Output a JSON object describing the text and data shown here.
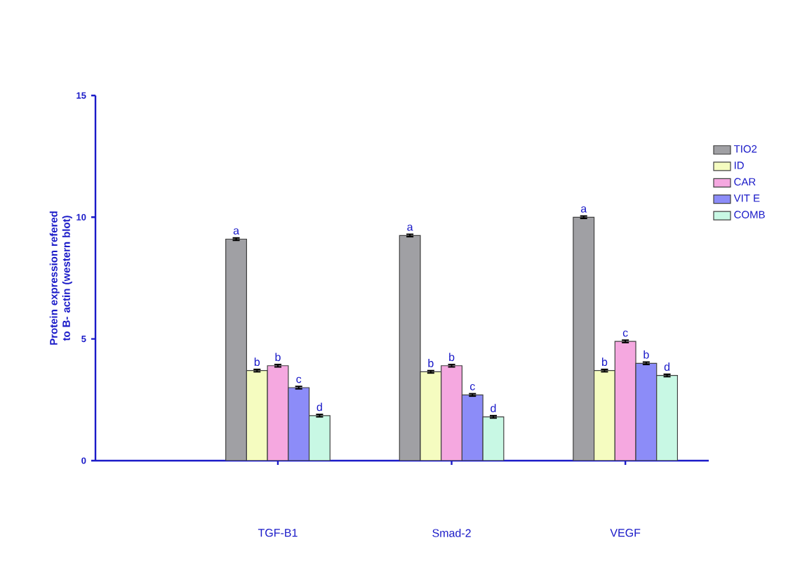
{
  "chart_data": {
    "type": "bar",
    "ylabel": "Protein expression refered to B- actin (western blot)",
    "categories": [
      "TGF-B1",
      "Smad-2",
      "VEGF"
    ],
    "ylim": [
      0,
      15
    ],
    "yticks": [
      0,
      5,
      10,
      15
    ],
    "grid": false,
    "legend": "top right",
    "series": [
      {
        "name": "TIO2",
        "color": "#a0a0a4",
        "values": [
          9.1,
          9.25,
          10.0
        ],
        "errors": [
          0.05,
          0.05,
          0.05
        ],
        "value_labels": [
          "a",
          "a",
          "a"
        ]
      },
      {
        "name": "ID",
        "color": "#f5fcc0",
        "values": [
          3.7,
          3.65,
          3.7
        ],
        "errors": [
          0.05,
          0.05,
          0.05
        ],
        "value_labels": [
          "b",
          "b",
          "b"
        ]
      },
      {
        "name": "CAR",
        "color": "#f5a8e0",
        "values": [
          3.9,
          3.9,
          4.9
        ],
        "errors": [
          0.05,
          0.05,
          0.05
        ],
        "value_labels": [
          "b",
          "b",
          "c"
        ]
      },
      {
        "name": "VIT E",
        "color": "#8c8cf8",
        "values": [
          3.0,
          2.7,
          4.0
        ],
        "errors": [
          0.05,
          0.05,
          0.05
        ],
        "value_labels": [
          "c",
          "c",
          "b"
        ]
      },
      {
        "name": "COMB",
        "color": "#c8f8e4",
        "values": [
          1.85,
          1.8,
          3.5
        ],
        "errors": [
          0.05,
          0.05,
          0.05
        ],
        "value_labels": [
          "d",
          "d",
          "d"
        ]
      }
    ]
  }
}
